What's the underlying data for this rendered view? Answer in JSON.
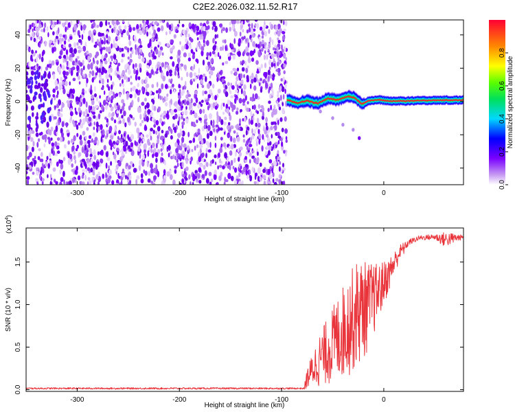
{
  "figure_title": "C2E2.2026.032.11.52.R17",
  "colors": {
    "snr_line": "#e8343a",
    "axis": "#000000",
    "spectro_bg": "#ffffff"
  },
  "chart_data": [
    {
      "type": "heatmap",
      "name": "spectrogram",
      "title": "C2E2.2026.032.11.52.R17",
      "xlabel": "Height of straight line (km)",
      "ylabel": "Frequency (Hz)",
      "xlim": [
        -350,
        78
      ],
      "ylim": [
        -50,
        49
      ],
      "xticks": [
        -300,
        -200,
        -100,
        0
      ],
      "yticks": [
        -40,
        -20,
        0,
        20,
        40
      ],
      "colorbar": {
        "label": "Normalized spectral amplitude",
        "range": [
          0.0,
          1.0
        ],
        "ticks": [
          0.0,
          0.2,
          0.4,
          0.6,
          0.8
        ],
        "colormap": "rainbow (white-purple-blue-cyan-green-yellow-red)"
      },
      "regions": [
        {
          "description": "broadband noise speckle",
          "x_range": [
            -350,
            -95
          ],
          "freq_range": [
            -50,
            49
          ],
          "amplitude": 0.15
        },
        {
          "description": "carrier signal line",
          "x_range": [
            -95,
            78
          ],
          "freq_approx": 0,
          "amplitude_peak": 1.0
        }
      ],
      "carrier_trace": [
        {
          "x": -95,
          "f": 1.0
        },
        {
          "x": -85,
          "f": -1.0
        },
        {
          "x": -75,
          "f": 0.5
        },
        {
          "x": -65,
          "f": -1.2
        },
        {
          "x": -55,
          "f": 1.8
        },
        {
          "x": -45,
          "f": 1.0
        },
        {
          "x": -35,
          "f": 3.0
        },
        {
          "x": -28,
          "f": 2.0
        },
        {
          "x": -22,
          "f": -1.5
        },
        {
          "x": -15,
          "f": 0.5
        },
        {
          "x": -5,
          "f": 1.0
        },
        {
          "x": 5,
          "f": 0.2
        },
        {
          "x": 20,
          "f": 0.3
        },
        {
          "x": 40,
          "f": 0.6
        },
        {
          "x": 60,
          "f": 0.8
        },
        {
          "x": 78,
          "f": 0.8
        }
      ],
      "secondary_trace": [
        {
          "x": -62,
          "f": -6
        },
        {
          "x": -50,
          "f": -10
        },
        {
          "x": -40,
          "f": -14
        },
        {
          "x": -30,
          "f": -17
        },
        {
          "x": -24,
          "f": -22
        }
      ]
    },
    {
      "type": "line",
      "name": "snr",
      "xlabel": "Height of straight line (km)",
      "ylabel": "SNR (10 * v/v)",
      "y_multiplier_label": "(x10",
      "y_multiplier_exp": "4",
      "y_multiplier_close": ")",
      "xlim": [
        -350,
        78
      ],
      "ylim": [
        -0.02,
        1.9
      ],
      "xticks": [
        -300,
        -200,
        -100,
        0
      ],
      "yticks": [
        0.0,
        0.5,
        1.0,
        1.5
      ],
      "ytick_labels": [
        "0.0",
        "0.5",
        "1.0",
        "1.5"
      ],
      "series": [
        {
          "name": "SNR",
          "envelope_upper": [
            {
              "x": -350,
              "y": 0.03
            },
            {
              "x": -78,
              "y": 0.03
            },
            {
              "x": -75,
              "y": 0.25
            },
            {
              "x": -65,
              "y": 0.6
            },
            {
              "x": -55,
              "y": 0.85
            },
            {
              "x": -45,
              "y": 1.1
            },
            {
              "x": -35,
              "y": 1.35
            },
            {
              "x": -25,
              "y": 1.55
            },
            {
              "x": -15,
              "y": 1.5
            },
            {
              "x": -5,
              "y": 1.48
            },
            {
              "x": 5,
              "y": 1.55
            },
            {
              "x": 15,
              "y": 1.7
            },
            {
              "x": 25,
              "y": 1.78
            },
            {
              "x": 35,
              "y": 1.82
            },
            {
              "x": 50,
              "y": 1.84
            },
            {
              "x": 60,
              "y": 1.88
            },
            {
              "x": 70,
              "y": 1.85
            },
            {
              "x": 78,
              "y": 1.82
            }
          ],
          "envelope_lower": [
            {
              "x": -350,
              "y": 0.0
            },
            {
              "x": -78,
              "y": 0.0
            },
            {
              "x": -75,
              "y": 0.01
            },
            {
              "x": -65,
              "y": 0.03
            },
            {
              "x": -55,
              "y": 0.05
            },
            {
              "x": -45,
              "y": 0.08
            },
            {
              "x": -35,
              "y": 0.15
            },
            {
              "x": -25,
              "y": 0.25
            },
            {
              "x": -15,
              "y": 0.45
            },
            {
              "x": -5,
              "y": 0.8
            },
            {
              "x": 5,
              "y": 1.15
            },
            {
              "x": 15,
              "y": 1.5
            },
            {
              "x": 25,
              "y": 1.68
            },
            {
              "x": 35,
              "y": 1.74
            },
            {
              "x": 50,
              "y": 1.74
            },
            {
              "x": 60,
              "y": 1.62
            },
            {
              "x": 70,
              "y": 1.7
            },
            {
              "x": 78,
              "y": 1.76
            }
          ]
        }
      ]
    }
  ]
}
